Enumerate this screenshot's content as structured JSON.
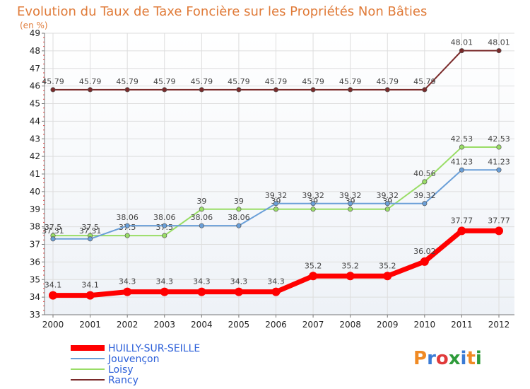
{
  "header": {
    "title": "Evolution du Taux de Taxe Foncière sur les Propriétés Non Bâties",
    "subtitle": "(en %)"
  },
  "logo": {
    "letters": [
      "P",
      "r",
      "o",
      "x",
      "i",
      "t",
      "i"
    ],
    "colors": [
      "#f08a24",
      "#3a7bd5",
      "#e03a3a",
      "#2e9b3a",
      "#3a7bd5",
      "#f08a24",
      "#2e9b3a"
    ]
  },
  "chart_data": {
    "type": "line",
    "title": "Evolution du Taux de Taxe Foncière sur les Propriétés Non Bâties",
    "subtitle": "(en %)",
    "xlabel": "",
    "ylabel": "",
    "x": [
      "2000",
      "2001",
      "2002",
      "2003",
      "2004",
      "2005",
      "2006",
      "2007",
      "2008",
      "2009",
      "2010",
      "2011",
      "2012"
    ],
    "ylim": [
      33,
      49
    ],
    "yticks": [
      "33",
      "34",
      "35",
      "36",
      "37",
      "38",
      "39",
      "40",
      "41",
      "42",
      "43",
      "44",
      "45",
      "46",
      "47",
      "48",
      "49"
    ],
    "grid": true,
    "legend_position": "bottom-left",
    "series": [
      {
        "name": "HUILLY-SUR-SEILLE",
        "color": "#ff0000",
        "values": [
          34.1,
          34.1,
          34.3,
          34.3,
          34.3,
          34.3,
          34.3,
          35.2,
          35.2,
          35.2,
          36.02,
          37.77,
          37.77
        ],
        "labels": [
          "34.1",
          "34.1",
          "34.3",
          "34.3",
          "34.3",
          "34.3",
          "34.3",
          "35.2",
          "35.2",
          "35.2",
          "36.02",
          "37.77",
          "37.77"
        ]
      },
      {
        "name": "Jouvençon",
        "color": "#6a9fd8",
        "values": [
          37.31,
          37.31,
          38.06,
          38.06,
          38.06,
          38.06,
          39.32,
          39.32,
          39.32,
          39.32,
          39.32,
          41.23,
          41.23
        ],
        "labels": [
          "37.31",
          "37.31",
          "38.06",
          "38.06",
          "38.06",
          "38.06",
          "39.32",
          "39.32",
          "39.32",
          "39.32",
          "39.32",
          "41.23",
          "41.23"
        ]
      },
      {
        "name": "Loisy",
        "color": "#99dd66",
        "values": [
          37.5,
          37.5,
          37.5,
          37.5,
          39,
          39,
          39,
          39,
          39,
          39,
          40.56,
          42.53,
          42.53
        ],
        "labels": [
          "37.5",
          "37.5",
          "37.5",
          "37.5",
          "39",
          "39",
          "39",
          "39",
          "39",
          "39",
          "40.56",
          "42.53",
          "42.53"
        ]
      },
      {
        "name": "Rancy",
        "color": "#7a2a2a",
        "values": [
          45.79,
          45.79,
          45.79,
          45.79,
          45.79,
          45.79,
          45.79,
          45.79,
          45.79,
          45.79,
          45.79,
          48.01,
          48.01
        ],
        "labels": [
          "45.79",
          "45.79",
          "45.79",
          "45.79",
          "45.79",
          "45.79",
          "45.79",
          "45.79",
          "45.79",
          "45.79",
          "45.79",
          "48.01",
          "48.01"
        ]
      }
    ]
  }
}
